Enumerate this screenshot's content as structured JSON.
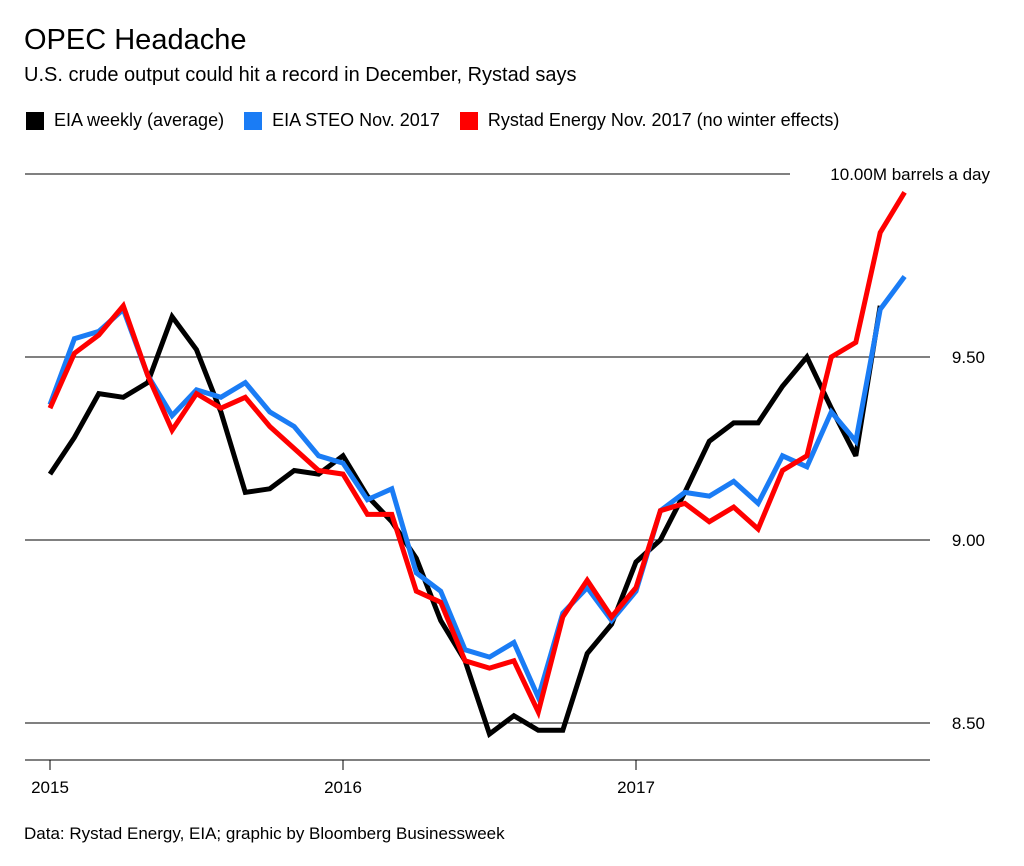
{
  "chart_data": {
    "type": "line",
    "title": "OPEC Headache",
    "subtitle": "U.S. crude output could hit a record in December, Rystad says",
    "source": "Data: Rystad Energy, EIA; graphic by Bloomberg Businessweek",
    "xlabel": "",
    "ylabel": "",
    "x_ticks": [
      "2015",
      "2016",
      "2017"
    ],
    "y_ticks": [
      {
        "value": 10.0,
        "label": "10.00M barrels a day"
      },
      {
        "value": 9.5,
        "label": "9.50"
      },
      {
        "value": 9.0,
        "label": "9.00"
      },
      {
        "value": 8.5,
        "label": "8.50"
      }
    ],
    "ylim": [
      8.4,
      10.0
    ],
    "xlim": [
      "2015-01",
      "2017-12"
    ],
    "grid": true,
    "legend_position": "top",
    "x": [
      "2015-01",
      "2015-02",
      "2015-03",
      "2015-04",
      "2015-05",
      "2015-06",
      "2015-07",
      "2015-08",
      "2015-09",
      "2015-10",
      "2015-11",
      "2015-12",
      "2016-01",
      "2016-02",
      "2016-03",
      "2016-04",
      "2016-05",
      "2016-06",
      "2016-07",
      "2016-08",
      "2016-09",
      "2016-10",
      "2016-11",
      "2016-12",
      "2017-01",
      "2017-02",
      "2017-03",
      "2017-04",
      "2017-05",
      "2017-06",
      "2017-07",
      "2017-08",
      "2017-09",
      "2017-10",
      "2017-11",
      "2017-12"
    ],
    "series": [
      {
        "name": "EIA weekly (average)",
        "color": "#000000",
        "values": [
          9.18,
          9.28,
          9.4,
          9.39,
          9.43,
          9.61,
          9.52,
          9.35,
          9.13,
          9.14,
          9.19,
          9.18,
          9.23,
          9.12,
          9.05,
          8.95,
          8.78,
          8.67,
          8.47,
          8.52,
          8.48,
          8.48,
          8.69,
          8.77,
          8.94,
          9.0,
          9.13,
          9.27,
          9.32,
          9.32,
          9.42,
          9.5,
          9.36,
          9.23,
          9.64,
          null
        ]
      },
      {
        "name": "EIA STEO Nov. 2017",
        "color": "#1a7cf5",
        "values": [
          9.37,
          9.55,
          9.57,
          9.63,
          9.45,
          9.34,
          9.41,
          9.39,
          9.43,
          9.35,
          9.31,
          9.23,
          9.21,
          9.11,
          9.14,
          8.91,
          8.86,
          8.7,
          8.68,
          8.72,
          8.57,
          8.8,
          8.87,
          8.78,
          8.86,
          9.08,
          9.13,
          9.12,
          9.16,
          9.1,
          9.23,
          9.2,
          9.35,
          9.27,
          9.63,
          9.72
        ]
      },
      {
        "name": "Rystad Energy Nov. 2017 (no winter effects)",
        "color": "#ff0000",
        "values": [
          9.36,
          9.51,
          9.56,
          9.64,
          9.45,
          9.3,
          9.4,
          9.36,
          9.39,
          9.31,
          9.25,
          9.19,
          9.18,
          9.07,
          9.07,
          8.86,
          8.83,
          8.67,
          8.65,
          8.67,
          8.53,
          8.79,
          8.89,
          8.79,
          8.87,
          9.08,
          9.1,
          9.05,
          9.09,
          9.03,
          9.19,
          9.23,
          9.5,
          9.54,
          9.84,
          9.95
        ]
      }
    ]
  }
}
